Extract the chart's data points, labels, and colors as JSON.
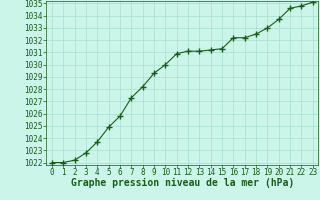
{
  "x": [
    0,
    1,
    2,
    3,
    4,
    5,
    6,
    7,
    8,
    9,
    10,
    11,
    12,
    13,
    14,
    15,
    16,
    17,
    18,
    19,
    20,
    21,
    22,
    23
  ],
  "y": [
    1022.0,
    1022.0,
    1022.2,
    1022.8,
    1023.7,
    1024.9,
    1025.8,
    1027.3,
    1028.2,
    1029.3,
    1030.0,
    1030.9,
    1031.1,
    1031.1,
    1031.2,
    1031.3,
    1032.2,
    1032.2,
    1032.5,
    1033.0,
    1033.7,
    1034.6,
    1034.8,
    1035.1
  ],
  "xlim": [
    -0.5,
    23.5
  ],
  "ylim": [
    1021.8,
    1035.2
  ],
  "yticks": [
    1022,
    1023,
    1024,
    1025,
    1026,
    1027,
    1028,
    1029,
    1030,
    1031,
    1032,
    1033,
    1034,
    1035
  ],
  "xticks": [
    0,
    1,
    2,
    3,
    4,
    5,
    6,
    7,
    8,
    9,
    10,
    11,
    12,
    13,
    14,
    15,
    16,
    17,
    18,
    19,
    20,
    21,
    22,
    23
  ],
  "xlabel": "Graphe pression niveau de la mer (hPa)",
  "line_color": "#1a5c1a",
  "marker_color": "#1a5c1a",
  "bg_color": "#caf5e8",
  "grid_color": "#a8ddd0",
  "title_color": "#1a5c1a",
  "tick_color": "#1a5c1a",
  "label_fontsize": 5.5,
  "xlabel_fontsize": 7.0,
  "marker_size": 4.0,
  "linewidth": 0.8
}
